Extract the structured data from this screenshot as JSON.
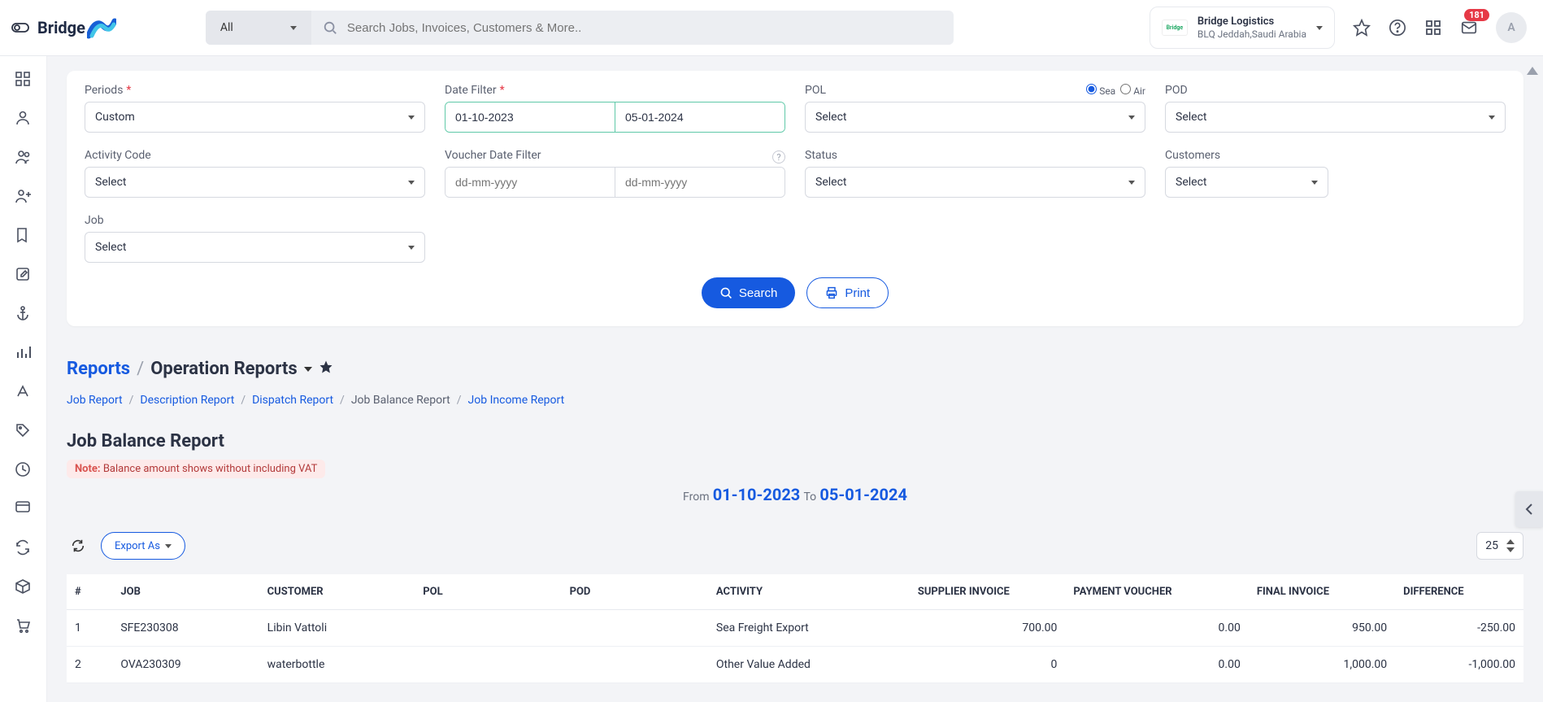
{
  "header": {
    "search_scope": "All",
    "search_placeholder": "Search Jobs, Invoices, Customers & More..",
    "org_name": "Bridge Logistics",
    "org_sub": "BLQ Jeddah,Saudi Arabia",
    "badge_count": "181",
    "avatar_initial": "A",
    "logo_text": "Bridge"
  },
  "filters": {
    "periods_label": "Periods",
    "periods_value": "Custom",
    "date_filter_label": "Date Filter",
    "date_from": "01-10-2023",
    "date_to": "05-01-2024",
    "pol_label": "POL",
    "pol_value": "Select",
    "radio_sea": "Sea",
    "radio_air": "Air",
    "pod_label": "POD",
    "pod_value": "Select",
    "activity_code_label": "Activity Code",
    "activity_code_value": "Select",
    "voucher_label": "Voucher Date Filter",
    "voucher_placeholder": "dd-mm-yyyy",
    "status_label": "Status",
    "status_value": "Select",
    "customers_label": "Customers",
    "customers_value": "Select",
    "job_label": "Job",
    "job_value": "Select",
    "search_btn": "Search",
    "print_btn": "Print"
  },
  "breadcrumb": {
    "reports": "Reports",
    "operation_reports": "Operation Reports",
    "job_report": "Job Report",
    "description_report": "Description Report",
    "dispatch_report": "Dispatch Report",
    "job_balance_report": "Job Balance Report",
    "job_income_report": "Job Income Report"
  },
  "report": {
    "title": "Job Balance Report",
    "note_label": "Note:",
    "note_text": "Balance amount shows without including VAT",
    "from_label": "From",
    "to_label": "To",
    "from_date": "01-10-2023",
    "to_date": "05-01-2024",
    "export_label": "Export As",
    "page_size": "25"
  },
  "table": {
    "columns": [
      "#",
      "JOB",
      "CUSTOMER",
      "POL",
      "POD",
      "ACTIVITY",
      "SUPPLIER INVOICE",
      "PAYMENT VOUCHER",
      "FINAL INVOICE",
      "DIFFERENCE"
    ],
    "rows": [
      {
        "idx": "1",
        "job": "SFE230308",
        "customer": "Libin Vattoli",
        "pol": "",
        "pod": "",
        "activity": "Sea Freight Export",
        "supplier_invoice": "700.00",
        "payment_voucher": "0.00",
        "final_invoice": "950.00",
        "difference": "-250.00"
      },
      {
        "idx": "2",
        "job": "OVA230309",
        "customer": "waterbottle",
        "pol": "",
        "pod": "",
        "activity": "Other Value Added",
        "supplier_invoice": "0",
        "payment_voucher": "0.00",
        "final_invoice": "1,000.00",
        "difference": "-1,000.00"
      }
    ]
  },
  "colors": {
    "primary": "#165ae0",
    "danger": "#e63946",
    "note_bg": "#fdeaea",
    "border": "#d6d9e0",
    "date_border": "#5fc9a8"
  }
}
